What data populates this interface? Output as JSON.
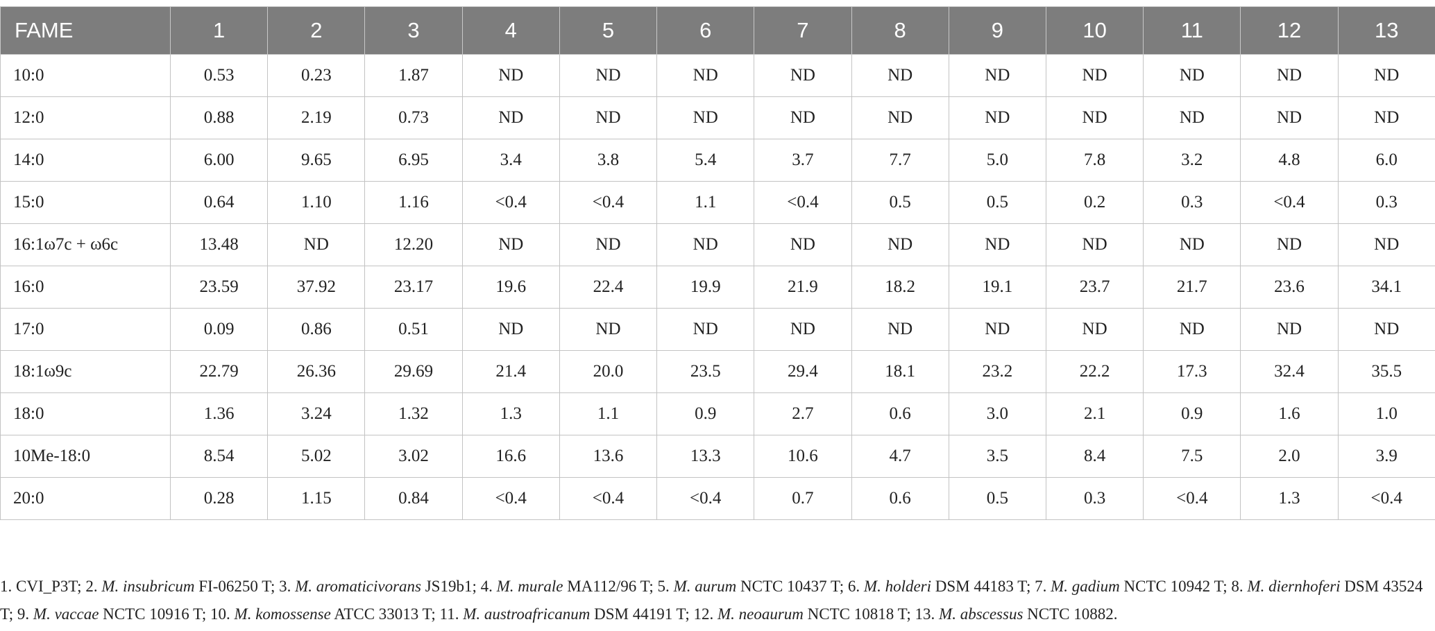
{
  "table": {
    "header": [
      "FAME",
      "1",
      "2",
      "3",
      "4",
      "5",
      "6",
      "7",
      "8",
      "9",
      "10",
      "11",
      "12",
      "13"
    ],
    "rows": [
      [
        "10:0",
        "0.53",
        "0.23",
        "1.87",
        "ND",
        "ND",
        "ND",
        "ND",
        "ND",
        "ND",
        "ND",
        "ND",
        "ND",
        "ND"
      ],
      [
        "12:0",
        "0.88",
        "2.19",
        "0.73",
        "ND",
        "ND",
        "ND",
        "ND",
        "ND",
        "ND",
        "ND",
        "ND",
        "ND",
        "ND"
      ],
      [
        "14:0",
        "6.00",
        "9.65",
        "6.95",
        "3.4",
        "3.8",
        "5.4",
        "3.7",
        "7.7",
        "5.0",
        "7.8",
        "3.2",
        "4.8",
        "6.0"
      ],
      [
        "15:0",
        "0.64",
        "1.10",
        "1.16",
        "<0.4",
        "<0.4",
        "1.1",
        "<0.4",
        "0.5",
        "0.5",
        "0.2",
        "0.3",
        "<0.4",
        "0.3"
      ],
      [
        "16:1ω7c + ω6c",
        "13.48",
        "ND",
        "12.20",
        "ND",
        "ND",
        "ND",
        "ND",
        "ND",
        "ND",
        "ND",
        "ND",
        "ND",
        "ND"
      ],
      [
        "16:0",
        "23.59",
        "37.92",
        "23.17",
        "19.6",
        "22.4",
        "19.9",
        "21.9",
        "18.2",
        "19.1",
        "23.7",
        "21.7",
        "23.6",
        "34.1"
      ],
      [
        "17:0",
        "0.09",
        "0.86",
        "0.51",
        "ND",
        "ND",
        "ND",
        "ND",
        "ND",
        "ND",
        "ND",
        "ND",
        "ND",
        "ND"
      ],
      [
        "18:1ω9c",
        "22.79",
        "26.36",
        "29.69",
        "21.4",
        "20.0",
        "23.5",
        "29.4",
        "18.1",
        "23.2",
        "22.2",
        "17.3",
        "32.4",
        "35.5"
      ],
      [
        "18:0",
        "1.36",
        "3.24",
        "1.32",
        "1.3",
        "1.1",
        "0.9",
        "2.7",
        "0.6",
        "3.0",
        "2.1",
        "0.9",
        "1.6",
        "1.0"
      ],
      [
        "10Me-18:0",
        "8.54",
        "5.02",
        "3.02",
        "16.6",
        "13.6",
        "13.3",
        "10.6",
        "4.7",
        "3.5",
        "8.4",
        "7.5",
        "2.0",
        "3.9"
      ],
      [
        "20:0",
        "0.28",
        "1.15",
        "0.84",
        "<0.4",
        "<0.4",
        "<0.4",
        "0.7",
        "0.6",
        "0.5",
        "0.3",
        "<0.4",
        "1.3",
        "<0.4"
      ]
    ]
  },
  "footnote": {
    "parts": [
      {
        "text": "1. CVI_P3T; 2. ",
        "style": "normal"
      },
      {
        "text": "M. insubricum",
        "style": "italic"
      },
      {
        "text": " FI-06250 T; 3. ",
        "style": "normal"
      },
      {
        "text": "M. aromaticivorans",
        "style": "italic"
      },
      {
        "text": " JS19b1; 4. ",
        "style": "normal"
      },
      {
        "text": "M. murale",
        "style": "italic"
      },
      {
        "text": " MA112/96 T; 5. ",
        "style": "normal"
      },
      {
        "text": "M. aurum",
        "style": "italic"
      },
      {
        "text": " NCTC 10437 T; 6. ",
        "style": "normal"
      },
      {
        "text": "M. holderi",
        "style": "italic"
      },
      {
        "text": " DSM 44183 T; 7. ",
        "style": "normal"
      },
      {
        "text": "M. gadium",
        "style": "italic"
      },
      {
        "text": " NCTC 10942 T; 8. ",
        "style": "normal"
      },
      {
        "text": "M. diernhoferi",
        "style": "italic"
      },
      {
        "text": " DSM 43524 T; 9. ",
        "style": "normal"
      },
      {
        "text": "M. vaccae",
        "style": "italic"
      },
      {
        "text": " NCTC 10916 T; 10. ",
        "style": "normal"
      },
      {
        "text": "M. komossense",
        "style": "italic"
      },
      {
        "text": " ATCC 33013 T; 11. ",
        "style": "normal"
      },
      {
        "text": "M. austroafricanum",
        "style": "italic"
      },
      {
        "text": " DSM 44191 T; 12. ",
        "style": "normal"
      },
      {
        "text": "M. neoaurum",
        "style": "italic"
      },
      {
        "text": " NCTC 10818 T; 13. ",
        "style": "normal"
      },
      {
        "text": "M. abscessus",
        "style": "italic"
      },
      {
        "text": " NCTC 10882.",
        "style": "normal"
      }
    ]
  }
}
